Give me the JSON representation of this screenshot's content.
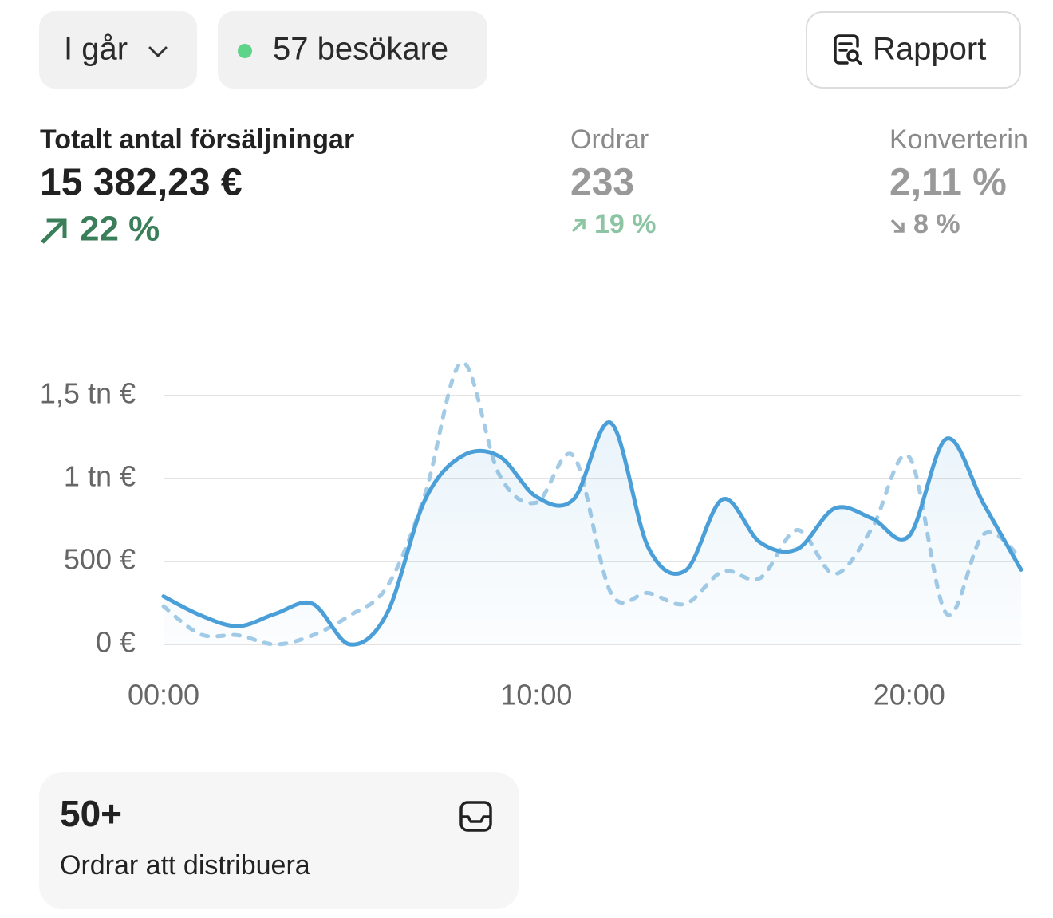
{
  "toolbar": {
    "period": "I går",
    "visitors": "57 besökare",
    "report": "Rapport"
  },
  "metrics": [
    {
      "label": "Totalt antal försäljningar",
      "value": "15 382,23 €",
      "change": "22 %",
      "direction": "up"
    },
    {
      "label": "Ordrar",
      "value": "233",
      "change": "19 %",
      "direction": "up"
    },
    {
      "label": "Konverterin",
      "value": "2,11 %",
      "change": "8 %",
      "direction": "down"
    }
  ],
  "chart_data": {
    "type": "line",
    "x": [
      0,
      1,
      2,
      3,
      4,
      5,
      6,
      7,
      8,
      9,
      10,
      11,
      12,
      13,
      14,
      15,
      16,
      17,
      18,
      19,
      20,
      21,
      22,
      23
    ],
    "series": [
      {
        "color": "#4a9fd8",
        "style": "solid",
        "values": [
          290,
          175,
          110,
          185,
          245,
          0,
          190,
          865,
          1135,
          1135,
          890,
          875,
          1335,
          585,
          445,
          875,
          615,
          575,
          820,
          760,
          655,
          1240,
          845,
          450
        ]
      },
      {
        "color": "#a3cbe6",
        "style": "dashed",
        "values": [
          230,
          60,
          55,
          0,
          55,
          175,
          350,
          895,
          1700,
          1025,
          855,
          1135,
          310,
          310,
          245,
          440,
          400,
          690,
          425,
          700,
          1130,
          185,
          665,
          520
        ]
      }
    ],
    "xlim": [
      0,
      23
    ],
    "xticks": [
      {
        "value": 0,
        "label": "00:00"
      },
      {
        "value": 10,
        "label": "10:00"
      },
      {
        "value": 20,
        "label": "20:00"
      }
    ],
    "ylim": [
      0,
      1750
    ],
    "yticks": [
      {
        "value": 0,
        "label": "0 €"
      },
      {
        "value": 500,
        "label": "500 €"
      },
      {
        "value": 1000,
        "label": "1 tn €"
      },
      {
        "value": 1500,
        "label": "1,5 tn €"
      }
    ],
    "grid": true
  },
  "card": {
    "count": "50+",
    "label": "Ordrar att distribuera"
  }
}
